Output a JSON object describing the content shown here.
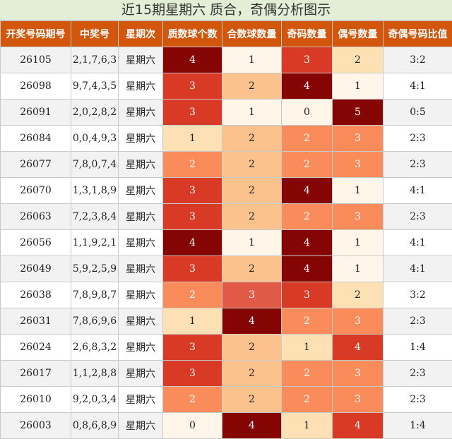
{
  "title": "近15期星期六 质合，奇偶分析图示",
  "headers": [
    "开奖号码期号",
    "中奖号",
    "星期次",
    "质数球个数",
    "合数球数量",
    "奇码数量",
    "偶号数量",
    "奇偶号码比值"
  ],
  "rows": [
    {
      "period": "26105",
      "numbers": "2,1,7,6,3",
      "weekday": "星期六",
      "prime": "4",
      "composite": "1",
      "odd": "3",
      "even": "2",
      "ratio": "3:2"
    },
    {
      "period": "26098",
      "numbers": "9,7,4,3,5",
      "weekday": "星期六",
      "prime": "3",
      "composite": "2",
      "odd": "4",
      "even": "1",
      "ratio": "4:1"
    },
    {
      "period": "26091",
      "numbers": "2,0,2,8,2",
      "weekday": "星期六",
      "prime": "3",
      "composite": "1",
      "odd": "0",
      "even": "5",
      "ratio": "0:5"
    },
    {
      "period": "26084",
      "numbers": "0,0,4,9,3",
      "weekday": "星期六",
      "prime": "1",
      "composite": "2",
      "odd": "2",
      "even": "3",
      "ratio": "2:3"
    },
    {
      "period": "26077",
      "numbers": "7,8,0,7,4",
      "weekday": "星期六",
      "prime": "2",
      "composite": "2",
      "odd": "2",
      "even": "3",
      "ratio": "2:3"
    },
    {
      "period": "26070",
      "numbers": "1,3,1,8,9",
      "weekday": "星期六",
      "prime": "3",
      "composite": "2",
      "odd": "4",
      "even": "1",
      "ratio": "4:1"
    },
    {
      "period": "26063",
      "numbers": "7,2,3,8,4",
      "weekday": "星期六",
      "prime": "3",
      "composite": "2",
      "odd": "2",
      "even": "3",
      "ratio": "2:3"
    },
    {
      "period": "26056",
      "numbers": "1,1,9,2,1",
      "weekday": "星期六",
      "prime": "4",
      "composite": "1",
      "odd": "4",
      "even": "1",
      "ratio": "4:1"
    },
    {
      "period": "26049",
      "numbers": "5,9,2,5,9",
      "weekday": "星期六",
      "prime": "3",
      "composite": "2",
      "odd": "4",
      "even": "1",
      "ratio": "4:1"
    },
    {
      "period": "26038",
      "numbers": "7,8,9,8,7",
      "weekday": "星期六",
      "prime": "2",
      "composite": "3",
      "odd": "3",
      "even": "2",
      "ratio": "3:2"
    },
    {
      "period": "26031",
      "numbers": "7,8,6,9,6",
      "weekday": "星期六",
      "prime": "1",
      "composite": "4",
      "odd": "2",
      "even": "3",
      "ratio": "2:3"
    },
    {
      "period": "26024",
      "numbers": "2,6,8,3,2",
      "weekday": "星期六",
      "prime": "3",
      "composite": "2",
      "odd": "1",
      "even": "4",
      "ratio": "1:4"
    },
    {
      "period": "26017",
      "numbers": "1,1,2,8,8",
      "weekday": "星期六",
      "prime": "3",
      "composite": "2",
      "odd": "2",
      "even": "3",
      "ratio": "2:3"
    },
    {
      "period": "26010",
      "numbers": "9,2,0,3,4",
      "weekday": "星期六",
      "prime": "2",
      "composite": "2",
      "odd": "2",
      "even": "3",
      "ratio": "2:3"
    },
    {
      "period": "26003",
      "numbers": "0,8,6,8,9",
      "weekday": "星期六",
      "prime": "0",
      "composite": "4",
      "odd": "1",
      "even": "4",
      "ratio": "1:4"
    }
  ],
  "colors": {
    "header_bg": "#d2570d",
    "title_bg": "#e2eed5",
    "row_alt_bg": "#f2f2f2",
    "cell_0": "#fff5e8",
    "cell_1": "#fde0b4",
    "cell_2": "#fbc28e",
    "cell_3": "#fa8b5b",
    "cell_3b": "#e05a45",
    "cell_4": "#d93a25",
    "cell_5": "#850505"
  }
}
